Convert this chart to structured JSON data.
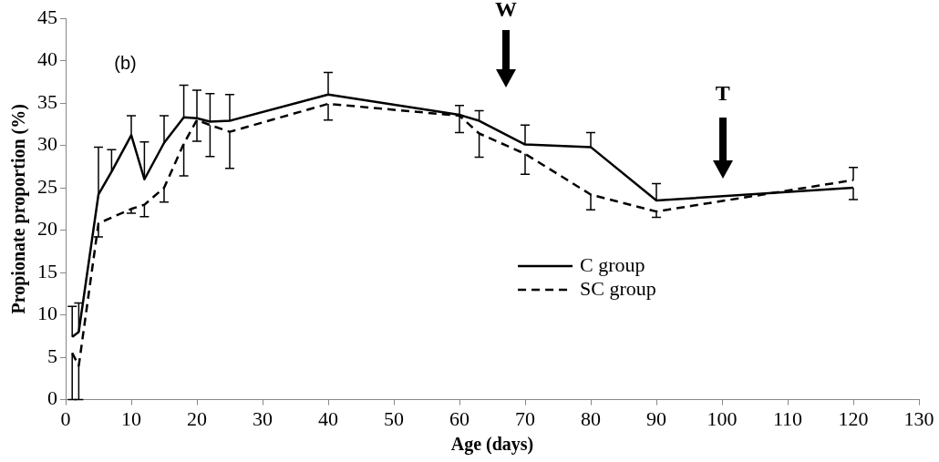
{
  "chart_data": {
    "type": "line",
    "xlabel": "Age (days)",
    "ylabel": "Propionate proportion (%)",
    "xlim": [
      0,
      130
    ],
    "xticks": [
      0,
      10,
      20,
      30,
      40,
      50,
      60,
      70,
      80,
      90,
      100,
      110,
      120,
      130
    ],
    "ylim": [
      0,
      45
    ],
    "yticks": [
      0,
      5,
      10,
      15,
      20,
      25,
      30,
      35,
      40,
      45
    ],
    "grid": false,
    "legend": "right",
    "marker": "none",
    "series": [
      {
        "name": "C group",
        "color": "#000000",
        "line_style": "solid",
        "x": [
          1,
          2,
          5,
          7,
          10,
          12,
          15,
          18,
          20,
          22,
          25,
          40,
          60,
          63,
          70,
          80,
          90,
          120
        ],
        "values": [
          7.4,
          8.0,
          24.2,
          26.9,
          31.2,
          26.0,
          30.3,
          33.3,
          33.2,
          32.8,
          32.9,
          36.0,
          33.6,
          32.9,
          30.1,
          29.8,
          23.5,
          25.0
        ],
        "errors": [
          [
            7.4,
            11.0
          ],
          [
            8.0,
            11.4
          ],
          [
            24.2,
            29.8
          ],
          [
            26.9,
            29.5
          ],
          [
            31.2,
            33.5
          ],
          [
            26.0,
            30.4
          ],
          [
            30.3,
            33.5
          ],
          [
            33.3,
            37.1
          ],
          [
            33.2,
            36.5
          ],
          [
            32.8,
            36.1
          ],
          [
            32.9,
            36.0
          ],
          [
            36.0,
            38.6
          ],
          [
            33.6,
            34.7
          ],
          [
            32.9,
            34.1
          ],
          [
            30.1,
            32.4
          ],
          [
            29.8,
            31.5
          ],
          [
            23.5,
            25.5
          ],
          [
            23.6,
            25.0
          ]
        ]
      },
      {
        "name": "SC group",
        "color": "#000000",
        "line_style": "dashed",
        "x": [
          1,
          2,
          5,
          10,
          12,
          15,
          18,
          20,
          22,
          25,
          40,
          60,
          63,
          70,
          80,
          90,
          120
        ],
        "values": [
          5.5,
          4.0,
          20.8,
          22.5,
          23.0,
          25.0,
          30.2,
          33.0,
          32.4,
          31.6,
          34.9,
          33.5,
          31.4,
          29.0,
          24.2,
          22.2,
          25.9
        ],
        "errors": [
          [
            0,
            5.5
          ],
          [
            0,
            4.0
          ],
          [
            19.2,
            20.8
          ],
          [
            22.0,
            22.5
          ],
          [
            21.6,
            23.0
          ],
          [
            23.3,
            25.0
          ],
          [
            26.4,
            30.2
          ],
          [
            30.5,
            33.0
          ],
          [
            28.7,
            32.4
          ],
          [
            27.3,
            31.6
          ],
          [
            33.0,
            34.9
          ],
          [
            31.5,
            33.5
          ],
          [
            28.6,
            31.4
          ],
          [
            26.6,
            29.0
          ],
          [
            22.4,
            24.2
          ],
          [
            21.5,
            22.2
          ],
          [
            25.9,
            27.4
          ]
        ]
      }
    ],
    "annotations": [
      "(b)",
      "W",
      "T"
    ]
  }
}
